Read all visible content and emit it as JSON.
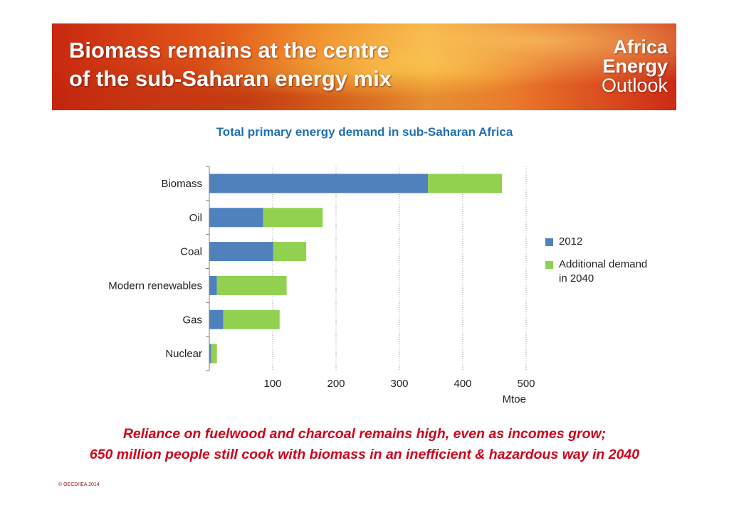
{
  "banner": {
    "title_line1": "Biomass remains at the centre",
    "title_line2": "of the sub-Saharan energy mix",
    "logo_line1": "Africa",
    "logo_line2": "Energy",
    "logo_line3": "Outlook"
  },
  "chart_data": {
    "type": "bar",
    "orientation": "horizontal",
    "stacked": true,
    "title": "Total primary energy demand in sub-Saharan Africa",
    "xlabel": "Mtoe",
    "ylabel": "",
    "categories": [
      "Biomass",
      "Oil",
      "Coal",
      "Modern renewables",
      "Gas",
      "Nuclear"
    ],
    "series": [
      {
        "name": "2012",
        "color": "#4f81bd",
        "values": [
          345,
          85,
          101,
          12,
          22,
          3
        ]
      },
      {
        "name": "Additional demand in 2040",
        "color": "#92d050",
        "values": [
          117,
          94,
          52,
          110,
          89,
          9
        ]
      }
    ],
    "xlim": [
      0,
      500
    ],
    "xticks": [
      100,
      200,
      300,
      400,
      500
    ],
    "grid": "vertical dotted",
    "legend_position": "right"
  },
  "legend": {
    "item1": "2012",
    "item2": "Additional demand in 2040"
  },
  "caption": {
    "line1": "Reliance on fuelwood and charcoal remains high, even as incomes grow;",
    "line2": "650 million people still cook with biomass in an inefficient & hazardous way in 2040"
  },
  "footer": {
    "copyright": "© OECD/IEA 2014"
  }
}
